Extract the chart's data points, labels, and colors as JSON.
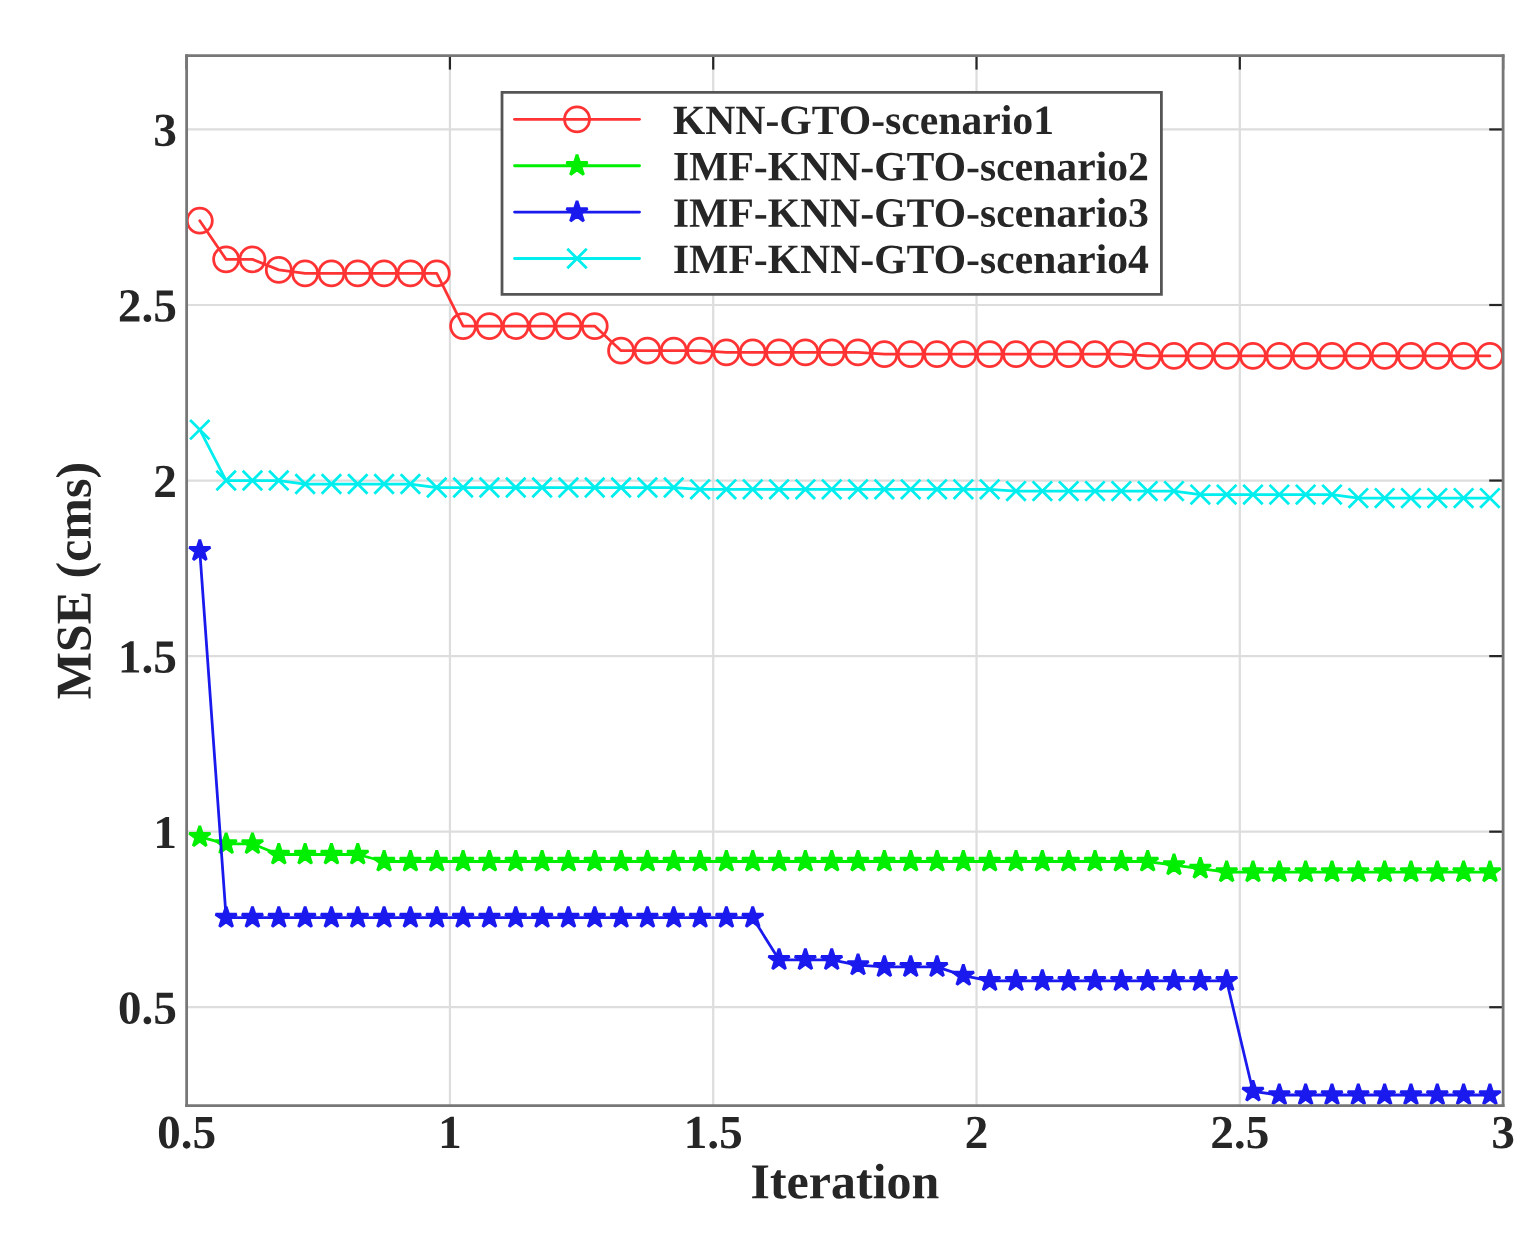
{
  "chart_data": {
    "type": "line",
    "xlabel": "Iteration",
    "ylabel": "MSE (cms)",
    "x": [
      0.525,
      0.575,
      0.625,
      0.675,
      0.725,
      0.775,
      0.825,
      0.875,
      0.925,
      0.975,
      1.025,
      1.075,
      1.125,
      1.175,
      1.225,
      1.275,
      1.325,
      1.375,
      1.425,
      1.475,
      1.525,
      1.575,
      1.625,
      1.675,
      1.725,
      1.775,
      1.825,
      1.875,
      1.925,
      1.975,
      2.025,
      2.075,
      2.125,
      2.175,
      2.225,
      2.275,
      2.325,
      2.375,
      2.425,
      2.475,
      2.525,
      2.575,
      2.625,
      2.675,
      2.725,
      2.775,
      2.825,
      2.875,
      2.925,
      2.975
    ],
    "series": [
      {
        "name": "KNN-GTO-scenario1",
        "color": "#ff3333",
        "marker": "circle",
        "values": [
          2.74,
          2.63,
          2.63,
          2.6,
          2.59,
          2.59,
          2.59,
          2.59,
          2.59,
          2.59,
          2.44,
          2.44,
          2.44,
          2.44,
          2.44,
          2.44,
          2.37,
          2.37,
          2.37,
          2.37,
          2.365,
          2.365,
          2.365,
          2.365,
          2.365,
          2.365,
          2.36,
          2.36,
          2.36,
          2.36,
          2.36,
          2.36,
          2.36,
          2.36,
          2.36,
          2.36,
          2.355,
          2.355,
          2.355,
          2.355,
          2.355,
          2.355,
          2.355,
          2.355,
          2.355,
          2.355,
          2.355,
          2.355,
          2.355,
          2.355
        ]
      },
      {
        "name": "IMF-KNN-GTO-scenario2",
        "color": "#00ee00",
        "marker": "star",
        "values": [
          0.985,
          0.965,
          0.965,
          0.935,
          0.935,
          0.935,
          0.935,
          0.915,
          0.915,
          0.915,
          0.915,
          0.915,
          0.915,
          0.915,
          0.915,
          0.915,
          0.915,
          0.915,
          0.915,
          0.915,
          0.915,
          0.915,
          0.915,
          0.915,
          0.915,
          0.915,
          0.915,
          0.915,
          0.915,
          0.915,
          0.915,
          0.915,
          0.915,
          0.915,
          0.915,
          0.915,
          0.915,
          0.905,
          0.895,
          0.885,
          0.885,
          0.885,
          0.885,
          0.885,
          0.885,
          0.885,
          0.885,
          0.885,
          0.885,
          0.885
        ]
      },
      {
        "name": "IMF-KNN-GTO-scenario3",
        "color": "#1a1aee",
        "marker": "star",
        "values": [
          1.8,
          0.755,
          0.755,
          0.755,
          0.755,
          0.755,
          0.755,
          0.755,
          0.755,
          0.755,
          0.755,
          0.755,
          0.755,
          0.755,
          0.755,
          0.755,
          0.755,
          0.755,
          0.755,
          0.755,
          0.755,
          0.755,
          0.635,
          0.635,
          0.635,
          0.62,
          0.615,
          0.615,
          0.615,
          0.59,
          0.575,
          0.575,
          0.575,
          0.575,
          0.575,
          0.575,
          0.575,
          0.575,
          0.575,
          0.575,
          0.26,
          0.25,
          0.25,
          0.25,
          0.25,
          0.25,
          0.25,
          0.25,
          0.25,
          0.25
        ]
      },
      {
        "name": "IMF-KNN-GTO-scenario4",
        "color": "#00eeee",
        "marker": "cross",
        "values": [
          2.145,
          2.0,
          2.0,
          2.0,
          1.99,
          1.99,
          1.99,
          1.99,
          1.99,
          1.98,
          1.98,
          1.98,
          1.98,
          1.98,
          1.98,
          1.98,
          1.98,
          1.98,
          1.98,
          1.975,
          1.975,
          1.975,
          1.975,
          1.975,
          1.975,
          1.975,
          1.975,
          1.975,
          1.975,
          1.975,
          1.975,
          1.97,
          1.97,
          1.97,
          1.97,
          1.97,
          1.97,
          1.97,
          1.96,
          1.96,
          1.96,
          1.96,
          1.96,
          1.96,
          1.95,
          1.95,
          1.95,
          1.95,
          1.95,
          1.95
        ]
      }
    ],
    "xlim": [
      0.5,
      3
    ],
    "xticks": [
      0.5,
      1,
      1.5,
      2,
      2.5,
      3
    ],
    "ylim": [
      0.22,
      3.21
    ],
    "yticks": [
      0.5,
      1,
      1.5,
      2,
      2.5,
      3
    ],
    "grid": true,
    "legend": "top",
    "line_style": "solid"
  }
}
